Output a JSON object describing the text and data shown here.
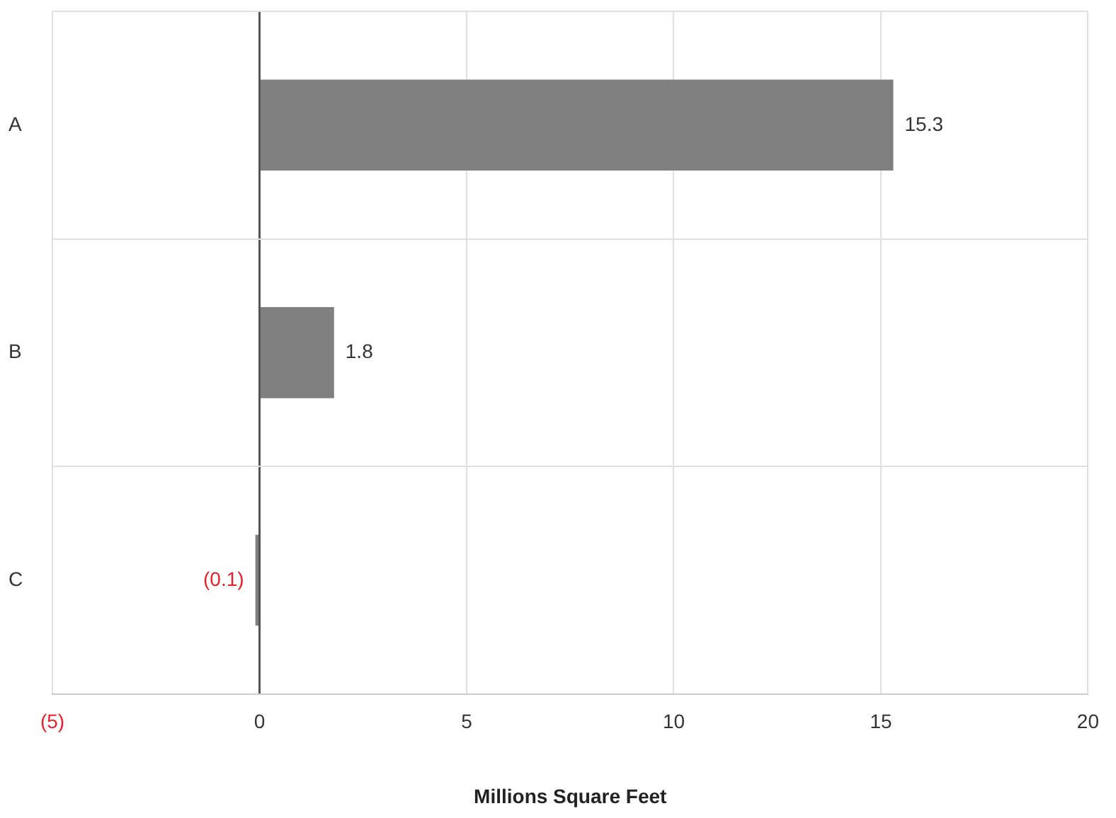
{
  "chart_data": {
    "type": "bar",
    "orientation": "horizontal",
    "xlabel": "Millions Square Feet",
    "categories": [
      "A",
      "B",
      "C"
    ],
    "values": [
      15.3,
      1.8,
      -0.1
    ],
    "value_labels": [
      "15.3",
      "1.8",
      "(0.1)"
    ],
    "color": "#808080",
    "xlim": [
      -5,
      20
    ],
    "xticks": [
      {
        "value": -5,
        "label": "(5)"
      },
      0,
      5,
      10,
      15,
      20
    ],
    "grid": true,
    "legend": false
  }
}
